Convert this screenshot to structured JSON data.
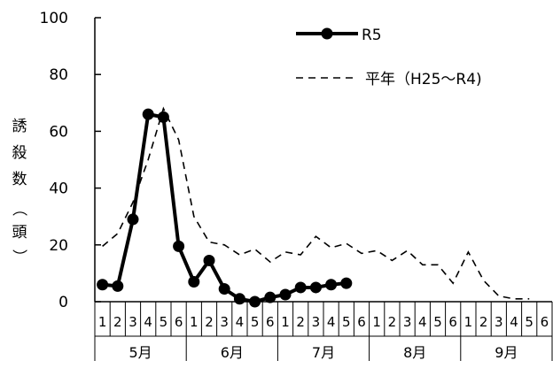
{
  "chart_data": {
    "type": "line",
    "ylabel": "誘殺数（頭）",
    "ylim": [
      0,
      100
    ],
    "yticks": [
      "0",
      "20",
      "40",
      "60",
      "80",
      "100"
    ],
    "months": [
      "5月",
      "6月",
      "7月",
      "8月",
      "9月"
    ],
    "semi_months": [
      "1",
      "2",
      "3",
      "4",
      "5",
      "6"
    ],
    "x": [
      "5月1",
      "5月2",
      "5月3",
      "5月4",
      "5月5",
      "5月6",
      "6月1",
      "6月2",
      "6月3",
      "6月4",
      "6月5",
      "6月6",
      "7月1",
      "7月2",
      "7月3",
      "7月4",
      "7月5",
      "7月6",
      "8月1",
      "8月2",
      "8月3",
      "8月4",
      "8月5",
      "8月6",
      "9月1",
      "9月2",
      "9月3",
      "9月4",
      "9月5",
      "9月6"
    ],
    "series": [
      {
        "name": "R5",
        "style": "solid-marker",
        "color": "#000000",
        "values": [
          6,
          5.5,
          29,
          66,
          65,
          19.5,
          7,
          14.5,
          4.5,
          1,
          0,
          1.5,
          2.5,
          5,
          5,
          6,
          6.5,
          null,
          null,
          null,
          null,
          null,
          null,
          null,
          null,
          null,
          null,
          null,
          null,
          null
        ]
      },
      {
        "name": "平年（H25～R4)",
        "style": "dashed",
        "color": "#000000",
        "values": [
          19.5,
          24,
          35,
          50,
          68,
          57,
          30,
          21,
          20,
          16.5,
          18.5,
          14,
          17.5,
          16.5,
          23,
          19,
          20.5,
          17,
          18,
          14.5,
          18,
          13,
          13,
          6.5,
          17.5,
          7.5,
          2,
          1,
          1,
          null
        ]
      }
    ],
    "legend": {
      "position": "top-right"
    }
  }
}
